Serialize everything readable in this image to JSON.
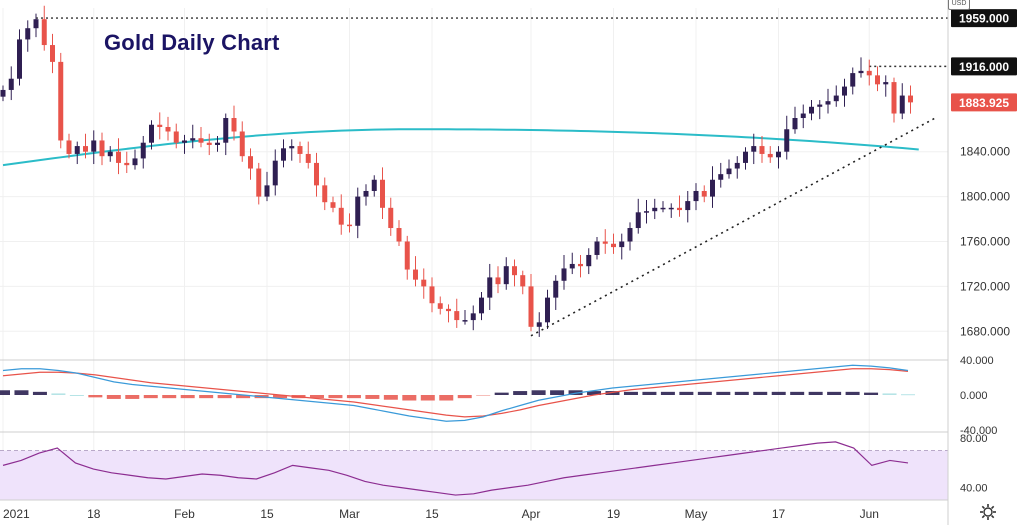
{
  "title": "Gold Daily Chart",
  "currency_badge": "USD",
  "colors": {
    "up": "#2f1f52",
    "down": "#e8534a",
    "ma": "#2bbcc8",
    "macd_line": "#3a9ad9",
    "signal_line": "#e8534a",
    "rsi_line": "#8c2d91",
    "rsi_band": "#efe3fb",
    "axis_text": "#333333",
    "grid": "#f0f0f0"
  },
  "icons": {
    "settings": "gear-icon"
  },
  "chart_data": [
    {
      "type": "candlestick",
      "title": "Gold Daily Chart",
      "y_ticks": [
        "1680.000",
        "1720.000",
        "1760.000",
        "1800.000",
        "1840.000"
      ],
      "ylim": [
        1658,
        1968
      ],
      "x_ticks": [
        "2021",
        "18",
        "Feb",
        "15",
        "Mar",
        "15",
        "Apr",
        "19",
        "May",
        "17",
        "Jun"
      ],
      "x_tick_positions": [
        0,
        11,
        22,
        32,
        42,
        52,
        64,
        74,
        84,
        94,
        105
      ],
      "n_candles": 111,
      "price_labels": [
        {
          "text": "1959.000",
          "value": 1959,
          "style": "dark"
        },
        {
          "text": "1916.000",
          "value": 1916,
          "style": "dark"
        },
        {
          "text": "1883.925",
          "value": 1883.925,
          "style": "red"
        }
      ],
      "horizontal_levels": [
        {
          "value": 1959,
          "from_index": 4
        },
        {
          "value": 1916,
          "from_index": 105
        }
      ],
      "trendline": {
        "from": [
          64,
          1676
        ],
        "to": [
          113,
          1870
        ]
      },
      "closes": [
        1895,
        1905,
        1940,
        1950,
        1958,
        1935,
        1920,
        1850,
        1838,
        1845,
        1840,
        1850,
        1836,
        1840,
        1830,
        1828,
        1834,
        1848,
        1864,
        1862,
        1858,
        1848,
        1850,
        1852,
        1848,
        1846,
        1848,
        1870,
        1858,
        1836,
        1825,
        1800,
        1810,
        1832,
        1843,
        1845,
        1838,
        1830,
        1810,
        1795,
        1790,
        1775,
        1774,
        1800,
        1805,
        1815,
        1790,
        1772,
        1760,
        1735,
        1726,
        1720,
        1705,
        1700,
        1698,
        1690,
        1690,
        1696,
        1710,
        1728,
        1722,
        1738,
        1730,
        1720,
        1684,
        1688,
        1710,
        1725,
        1736,
        1740,
        1738,
        1748,
        1760,
        1758,
        1755,
        1760,
        1772,
        1786,
        1787,
        1790,
        1790,
        1790,
        1788,
        1796,
        1805,
        1800,
        1815,
        1820,
        1825,
        1830,
        1840,
        1845,
        1838,
        1835,
        1840,
        1860,
        1870,
        1874,
        1880,
        1882,
        1885,
        1890,
        1898,
        1910,
        1912,
        1908,
        1900,
        1902,
        1874,
        1890,
        1883.925
      ],
      "moving_average": {
        "start": 1828,
        "peak": 1860,
        "end": 1842
      },
      "macd": {
        "y_ticks": [
          "40.000",
          "0.000",
          "-40.000"
        ],
        "ylim": [
          -40,
          40
        ],
        "macd_line": [
          28,
          30,
          30,
          28,
          25,
          20,
          15,
          12,
          10,
          8,
          6,
          4,
          2,
          0,
          -2,
          -4,
          -6,
          -8,
          -10,
          -12,
          -16,
          -20,
          -24,
          -27,
          -30,
          -29,
          -25,
          -18,
          -12,
          -6,
          -2,
          2,
          5,
          8,
          10,
          12,
          14,
          16,
          18,
          20,
          22,
          24,
          26,
          28,
          30,
          32,
          34,
          33,
          31,
          28
        ],
        "signal_line": [
          22,
          24,
          26,
          26,
          25,
          23,
          20,
          17,
          14,
          12,
          10,
          8,
          6,
          4,
          2,
          0,
          -2,
          -4,
          -6,
          -8,
          -11,
          -14,
          -17,
          -20,
          -23,
          -25,
          -24,
          -21,
          -17,
          -12,
          -8,
          -4,
          0,
          3,
          6,
          8,
          10,
          12,
          14,
          16,
          18,
          20,
          22,
          24,
          26,
          28,
          30,
          30,
          29,
          27
        ]
      },
      "rsi": {
        "y_ticks": [
          "80.00",
          "40.00"
        ],
        "ylim": [
          30,
          85
        ],
        "band": [
          30,
          70
        ],
        "values": [
          58,
          62,
          68,
          72,
          60,
          55,
          52,
          50,
          48,
          47,
          49,
          51,
          50,
          48,
          47,
          52,
          58,
          56,
          54,
          50,
          45,
          42,
          40,
          38,
          36,
          34,
          35,
          38,
          40,
          42,
          45,
          48,
          50,
          52,
          54,
          56,
          58,
          60,
          62,
          64,
          66,
          68,
          70,
          72,
          74,
          76,
          77,
          72,
          58,
          62,
          60
        ]
      }
    }
  ]
}
